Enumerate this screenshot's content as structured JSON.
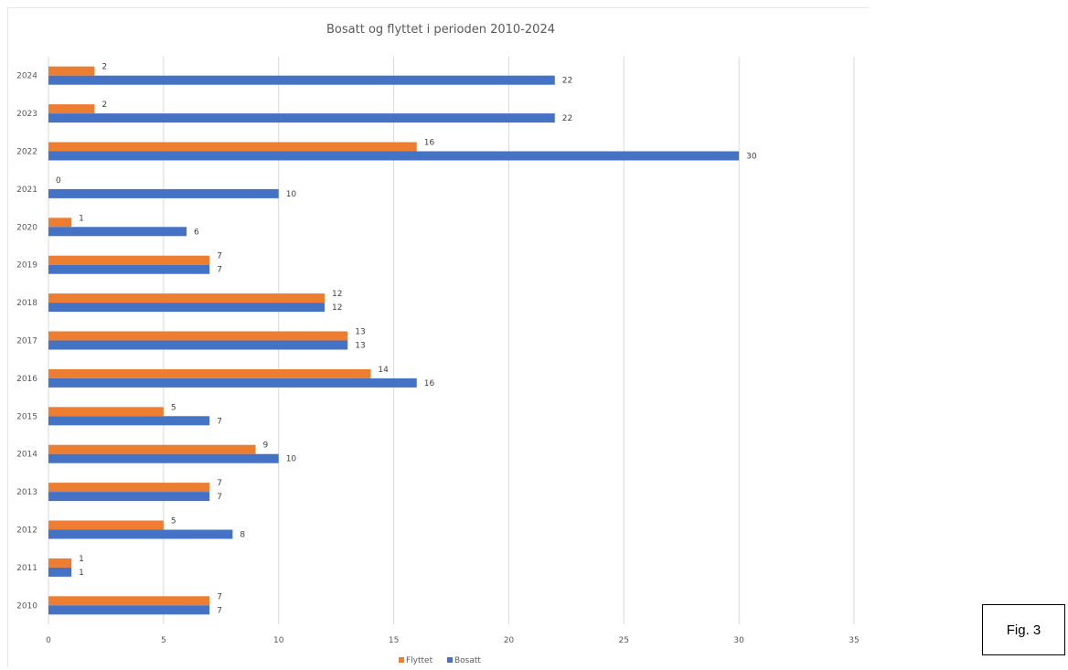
{
  "figure_label": "Fig. 3",
  "chart_data": {
    "type": "bar",
    "orientation": "horizontal",
    "title": "Bosatt og flyttet i perioden 2010-2024",
    "xlabel": "",
    "ylabel": "",
    "xlim": [
      0,
      35
    ],
    "x_ticks": [
      0,
      5,
      10,
      15,
      20,
      25,
      30,
      35
    ],
    "grid": true,
    "legend_position": "bottom",
    "categories": [
      "2010",
      "2011",
      "2012",
      "2013",
      "2014",
      "2015",
      "2016",
      "2017",
      "2018",
      "2019",
      "2020",
      "2021",
      "2022",
      "2023",
      "2024"
    ],
    "series": [
      {
        "name": "Flyttet",
        "color": "#ed7d31",
        "values": [
          7,
          1,
          5,
          7,
          9,
          5,
          14,
          13,
          12,
          7,
          1,
          0,
          16,
          2,
          2
        ]
      },
      {
        "name": "Bosatt",
        "color": "#4472c4",
        "values": [
          7,
          1,
          8,
          7,
          10,
          7,
          16,
          13,
          12,
          7,
          6,
          10,
          30,
          22,
          22
        ]
      }
    ]
  }
}
